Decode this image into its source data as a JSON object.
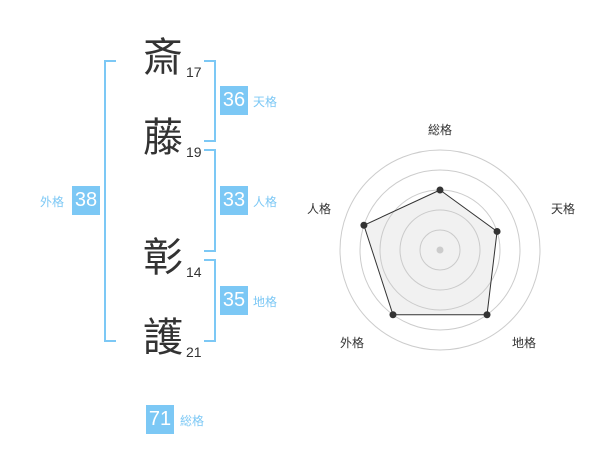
{
  "name": {
    "chars": [
      {
        "char": "斎",
        "strokes": "17"
      },
      {
        "char": "藤",
        "strokes": "19"
      },
      {
        "char": "彰",
        "strokes": "14"
      },
      {
        "char": "護",
        "strokes": "21"
      }
    ]
  },
  "kaku": {
    "tenkaku": {
      "value": "36",
      "label": "天格"
    },
    "jinkaku": {
      "value": "33",
      "label": "人格"
    },
    "chikaku": {
      "value": "35",
      "label": "地格"
    },
    "gaikaku": {
      "value": "38",
      "label": "外格"
    },
    "soukaku": {
      "value": "71",
      "label": "総格"
    }
  },
  "accent": "#7cc8f5",
  "chart_data": {
    "type": "radar",
    "axes": [
      "総格",
      "天格",
      "地格",
      "外格",
      "人格"
    ],
    "values": [
      3,
      3,
      4,
      4,
      4
    ],
    "max": 5,
    "rings": 5
  }
}
